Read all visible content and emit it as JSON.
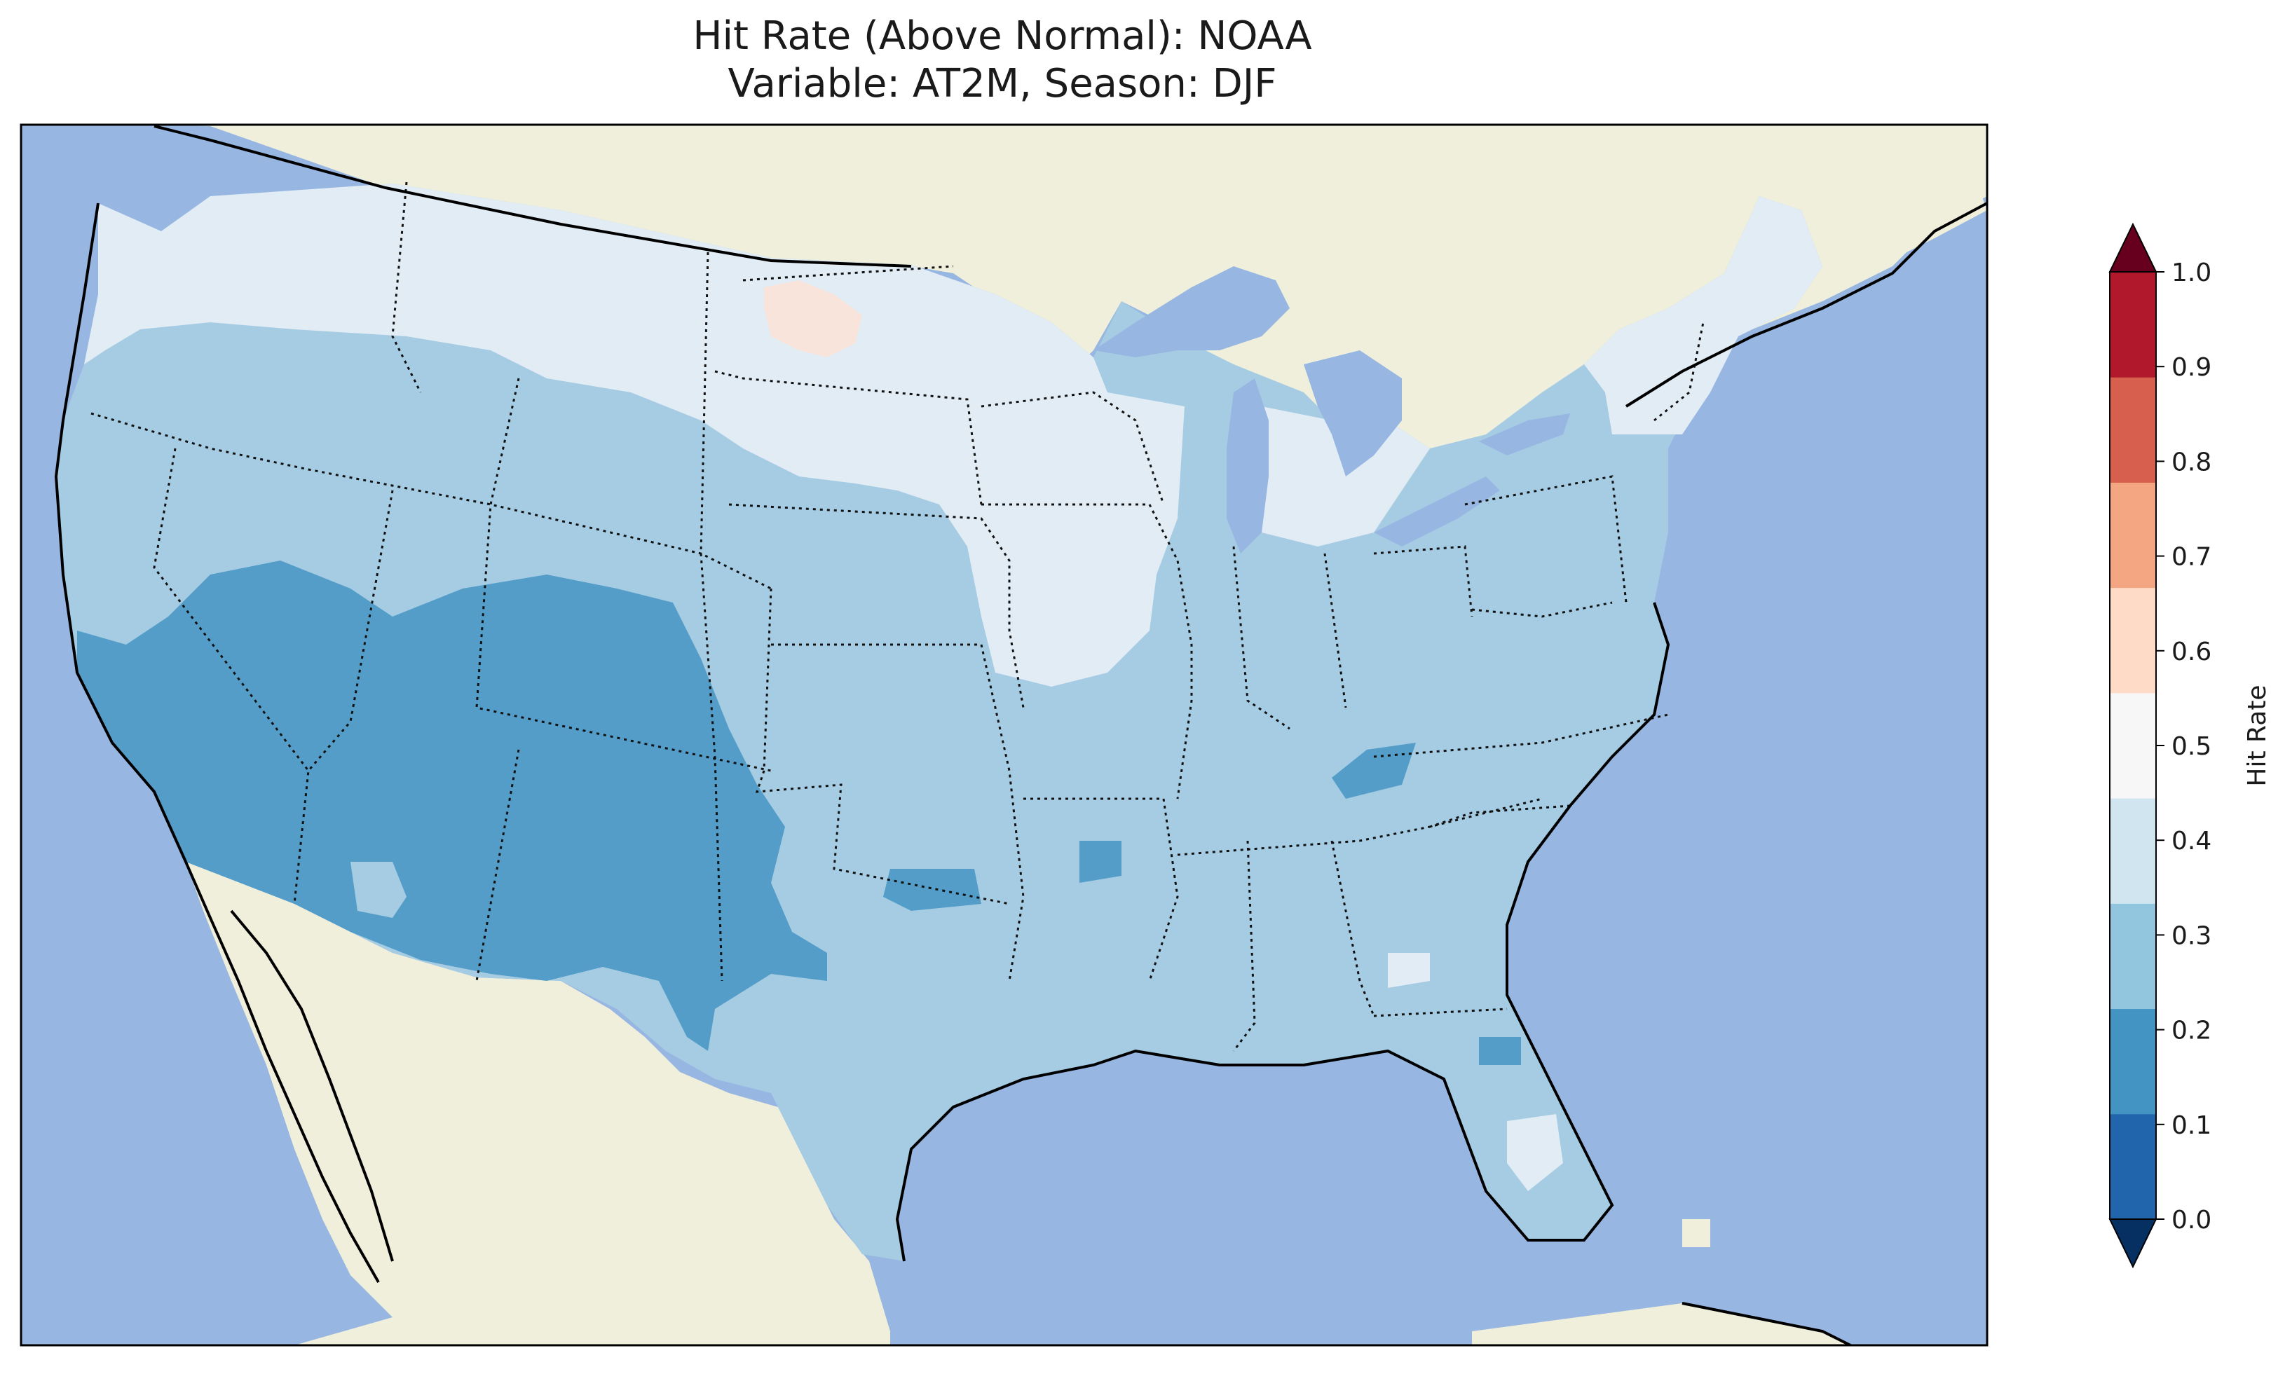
{
  "title": {
    "line1": "Hit Rate (Above Normal): NOAA",
    "line2": "Variable: AT2M, Season: DJF"
  },
  "colorbar": {
    "label": "Hit Rate",
    "ticks": [
      "0.0",
      "0.1",
      "0.2",
      "0.3",
      "0.4",
      "0.5",
      "0.6",
      "0.7",
      "0.8",
      "0.9",
      "1.0"
    ],
    "colors": [
      "#053061",
      "#2166ac",
      "#4393c3",
      "#92c5de",
      "#d1e5f0",
      "#f7f7f7",
      "#fddbc7",
      "#f4a582",
      "#d6604d",
      "#b2182b",
      "#67001f"
    ],
    "extend": "both"
  },
  "map": {
    "ocean_color": "#97b6e1",
    "land_color": "#efefdb",
    "lake_color": "#97b6e1",
    "dominant_range": "0.3-0.4",
    "regions": [
      {
        "name": "southwest-low",
        "range": "0.2-0.3"
      },
      {
        "name": "central-rockies-low",
        "range": "0.2-0.3"
      },
      {
        "name": "north-plains-high",
        "range": "0.4-0.5"
      },
      {
        "name": "upper-midwest-high",
        "range": "0.4-0.5"
      },
      {
        "name": "north-dakota-spot",
        "range": "0.5-0.6"
      }
    ]
  }
}
